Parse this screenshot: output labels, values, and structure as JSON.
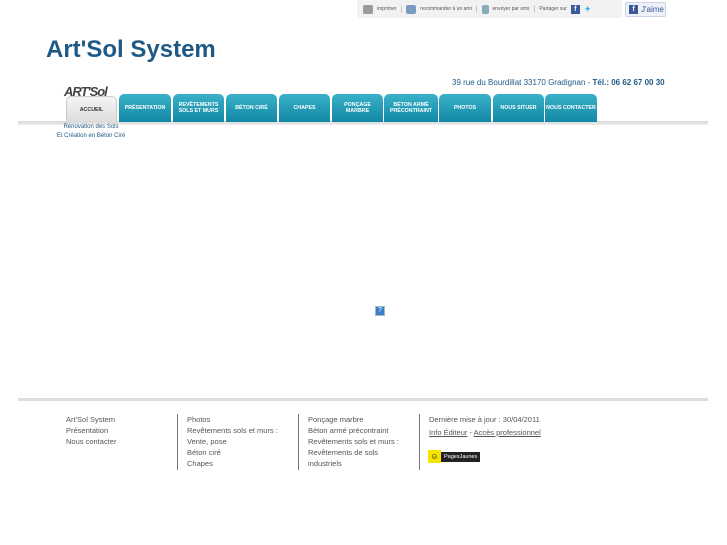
{
  "toolbar": {
    "print": "imprimer",
    "recommend": "recommander à un ami",
    "sms": "envoyer par sms",
    "share": "Partager sur",
    "like": "J'aime"
  },
  "header": {
    "title": "Art'Sol System",
    "logo": "ART'Sol",
    "address": "39 rue du Bourdillat 33170 Gradignan  - ",
    "phone": "Tél.: 06 62 67 00 30",
    "slogan_line1": "Rénovation des Sols",
    "slogan_line2": "Et Création en Béton Ciré"
  },
  "nav": [
    {
      "label": "ACCUEIL",
      "active": true
    },
    {
      "label": "PRÉSENTATION"
    },
    {
      "label": "REVÊTEMENTS SOLS ET MURS"
    },
    {
      "label": "BÉTON CIRÉ"
    },
    {
      "label": "CHAPES"
    },
    {
      "label": "PONÇAGE MARBRE"
    },
    {
      "label": "BÉTON ARMÉ PRÉCONTRAINT"
    },
    {
      "label": "PHOTOS"
    },
    {
      "label": "NOUS SITUER"
    },
    {
      "label": "NOUS CONTACTER"
    }
  ],
  "main": {
    "placeholder_icon": "?"
  },
  "footer": {
    "col1": [
      "Art'Sol System",
      "Présentation",
      "Nous contacter"
    ],
    "col2": [
      "Photos",
      "Revêtements sols et murs :",
      "Vente, pose",
      "Béton ciré",
      "Chapes"
    ],
    "col3": [
      "Ponçage marbre",
      "Béton armé précontraint",
      "Revêtements sols et murs :",
      "Revêtements de sols",
      "industriels"
    ],
    "updated": "Dernière mise à jour : 30/04/2011",
    "info": "Info Éditeur",
    "sep": " - ",
    "pro": "Accès professionnel",
    "pj": "PagesJaunes"
  },
  "colors": {
    "brand": "#1f5a86",
    "tab": "#1a95b0"
  }
}
